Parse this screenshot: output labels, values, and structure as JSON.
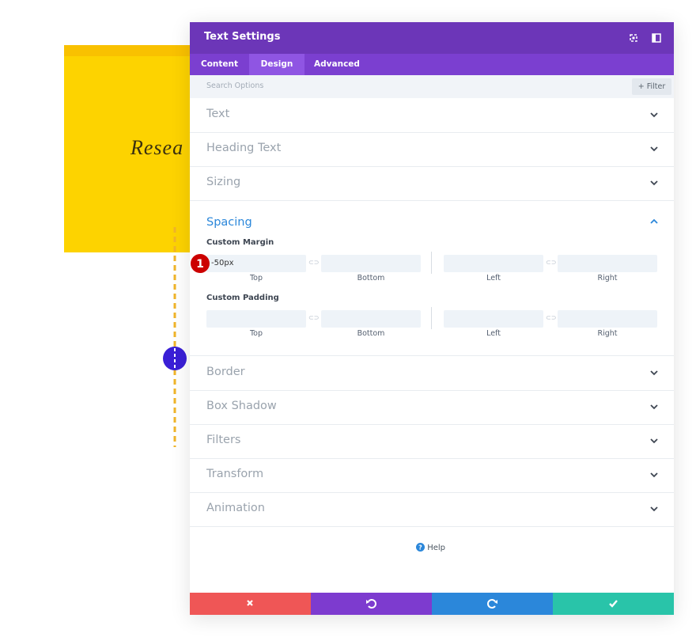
{
  "background": {
    "card_text": "Resea"
  },
  "modal": {
    "title": "Text Settings",
    "tabs": [
      "Content",
      "Design",
      "Advanced"
    ],
    "search_placeholder": "Search Options",
    "filter": "Filter",
    "sections_before": [
      "Text",
      "Heading Text",
      "Sizing"
    ],
    "open_section": {
      "title": "Spacing",
      "groups": [
        {
          "label": "Custom Margin",
          "fields": [
            {
              "value": "-50px",
              "label": "Top"
            },
            {
              "label": "Bottom"
            },
            {
              "label": "Left"
            },
            {
              "label": "Right"
            }
          ]
        },
        {
          "label": "Custom Padding",
          "fields": [
            {
              "label": "Top"
            },
            {
              "label": "Bottom"
            },
            {
              "label": "Left"
            },
            {
              "label": "Right"
            }
          ]
        }
      ]
    },
    "sections_after": [
      "Border",
      "Box Shadow",
      "Filters",
      "Transform",
      "Animation"
    ],
    "help": "Help"
  },
  "annotation": {
    "badge": "1"
  }
}
